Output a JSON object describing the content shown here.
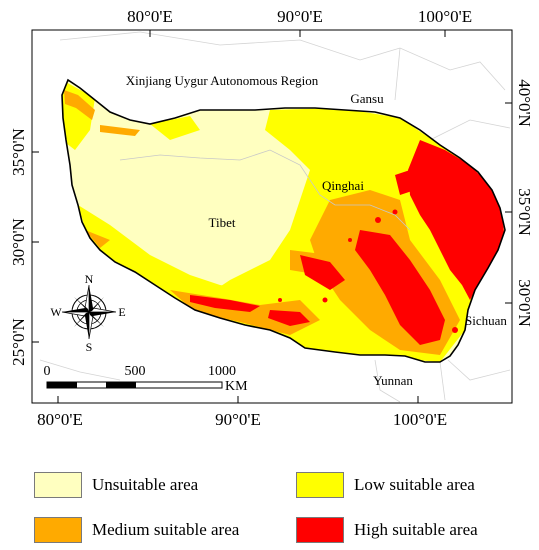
{
  "map": {
    "top_ticks": [
      "80°0'E",
      "90°0'E",
      "100°0'E"
    ],
    "bottom_ticks": [
      "80°0'E",
      "90°0'E",
      "100°0'E"
    ],
    "left_ticks": [
      "35°0'N",
      "30°0'N",
      "25°0'N"
    ],
    "right_ticks": [
      "40°0'N",
      "35°0'N",
      "30°0'N"
    ],
    "regions": {
      "xinjiang": "Xinjiang Uygur Autonomous Region",
      "gansu": "Gansu",
      "qinghai": "Qinghai",
      "tibet": "Tibet",
      "sichuan": "Sichuan",
      "yunnan": "Yunnan"
    },
    "compass": {
      "n": "N",
      "s": "S",
      "e": "E",
      "w": "W"
    },
    "scale": {
      "labels": [
        "0",
        "500",
        "1000"
      ],
      "unit": "KM"
    }
  },
  "legend": {
    "items": [
      {
        "label": "Unsuitable area",
        "color": "#ffffc0"
      },
      {
        "label": "Low suitable area",
        "color": "#ffff00"
      },
      {
        "label": "Medium suitable area",
        "color": "#ffaa00"
      },
      {
        "label": "High suitable area",
        "color": "#ff0000"
      }
    ]
  }
}
